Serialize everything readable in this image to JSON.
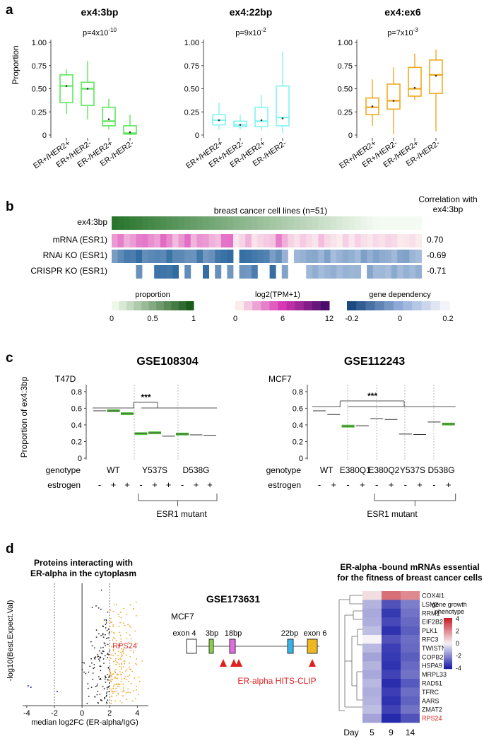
{
  "panel_labels": {
    "a": "a",
    "b": "b",
    "c": "c",
    "d": "d"
  },
  "panel_a": {
    "ylabel": "Proportion",
    "yticks": [
      "1.00",
      "0.75",
      "0.50",
      "0.25",
      "0"
    ],
    "categories": [
      "ER+/HER2+",
      "ER+/HER2-",
      "ER-/HER2+",
      "ER-/HER2-"
    ],
    "colors": [
      "#5ce65c",
      "#7ff5f0",
      "#f0a820"
    ],
    "titles": [
      "ex4:3bp",
      "ex4:22bp",
      "ex4:ex6"
    ],
    "pvals": [
      {
        "base": "p=4x10",
        "exp": "-10"
      },
      {
        "base": "p=9x10",
        "exp": "-2"
      },
      {
        "base": "p=7x10",
        "exp": "-3"
      }
    ]
  },
  "chart_data": [
    {
      "type": "box",
      "title": "ex4:3bp",
      "ylabel": "Proportion",
      "ylim": [
        0,
        1
      ],
      "categories": [
        "ER+/HER2+",
        "ER+/HER2-",
        "ER-/HER2+",
        "ER-/HER2-"
      ],
      "boxes": [
        {
          "min": 0.23,
          "q1": 0.35,
          "median": 0.53,
          "q3": 0.65,
          "max": 0.71,
          "mean": 0.53
        },
        {
          "min": 0.17,
          "q1": 0.32,
          "median": 0.5,
          "q3": 0.57,
          "max": 0.8,
          "mean": 0.5
        },
        {
          "min": 0.06,
          "q1": 0.1,
          "median": 0.15,
          "q3": 0.3,
          "max": 0.39,
          "mean": 0.17
        },
        {
          "min": 0.0,
          "q1": 0.01,
          "median": 0.02,
          "q3": 0.1,
          "max": 0.22,
          "mean": 0.03
        }
      ]
    },
    {
      "type": "box",
      "title": "ex4:22bp",
      "ylabel": "Proportion",
      "ylim": [
        0,
        1
      ],
      "categories": [
        "ER+/HER2+",
        "ER+/HER2-",
        "ER-/HER2+",
        "ER-/HER2-"
      ],
      "boxes": [
        {
          "min": 0.06,
          "q1": 0.11,
          "median": 0.16,
          "q3": 0.22,
          "max": 0.35,
          "mean": 0.16
        },
        {
          "min": 0.06,
          "q1": 0.09,
          "median": 0.11,
          "q3": 0.15,
          "max": 0.22,
          "mean": 0.11
        },
        {
          "min": 0.05,
          "q1": 0.09,
          "median": 0.15,
          "q3": 0.3,
          "max": 0.43,
          "mean": 0.16
        },
        {
          "min": 0.02,
          "q1": 0.1,
          "median": 0.19,
          "q3": 0.53,
          "max": 0.9,
          "mean": 0.18
        }
      ]
    },
    {
      "type": "box",
      "title": "ex4:ex6",
      "ylabel": "Proportion",
      "ylim": [
        0,
        1
      ],
      "categories": [
        "ER+/HER2+",
        "ER+/HER2-",
        "ER-/HER2+",
        "ER-/HER2-"
      ],
      "boxes": [
        {
          "min": 0.1,
          "q1": 0.22,
          "median": 0.3,
          "q3": 0.4,
          "max": 0.6,
          "mean": 0.31
        },
        {
          "min": 0.01,
          "q1": 0.28,
          "median": 0.37,
          "q3": 0.55,
          "max": 0.73,
          "mean": 0.37
        },
        {
          "min": 0.38,
          "q1": 0.42,
          "median": 0.5,
          "q3": 0.73,
          "max": 0.88,
          "mean": 0.51
        },
        {
          "min": 0.04,
          "q1": 0.45,
          "median": 0.65,
          "q3": 0.81,
          "max": 0.92,
          "mean": 0.64
        }
      ]
    },
    {
      "type": "bar",
      "title": "GSE108304",
      "cell_line": "T47D",
      "ylabel": "Proportion of ex4:3bp",
      "ylim": [
        0,
        0.85
      ],
      "yticks": [
        "0.8",
        "0.6",
        "0.4",
        "0.2",
        "0"
      ],
      "values": [
        0.57,
        0.57,
        0.535,
        0.295,
        0.305,
        0.265,
        0.29,
        0.28,
        0.275
      ],
      "highlight": [
        false,
        true,
        true,
        true,
        true,
        false,
        true,
        false,
        false
      ],
      "genotype_labels": [
        "WT",
        "Y537S",
        "D538G"
      ],
      "genotype_groups": [
        [
          0,
          2
        ],
        [
          3,
          5
        ],
        [
          6,
          8
        ]
      ],
      "estrogen": [
        "-",
        "+",
        "+",
        "-",
        "+",
        "+",
        "-",
        "+",
        "+"
      ],
      "significance": "***"
    },
    {
      "type": "bar",
      "title": "GSE112243",
      "cell_line": "MCF7",
      "ylabel": "",
      "ylim": [
        0,
        0.85
      ],
      "yticks": [
        "0.8",
        "0.6",
        "0.4",
        "0.2",
        "0"
      ],
      "values": [
        0.57,
        0.525,
        0.385,
        0.39,
        0.475,
        0.465,
        0.29,
        0.285,
        0.435,
        0.41
      ],
      "highlight": [
        false,
        false,
        true,
        false,
        false,
        false,
        false,
        false,
        false,
        true
      ],
      "genotype_labels": [
        "WT",
        "E380Q1",
        "E380Q2",
        "Y537S",
        "D538G"
      ],
      "genotype_groups": [
        [
          0,
          1
        ],
        [
          2,
          3
        ],
        [
          4,
          5
        ],
        [
          6,
          7
        ],
        [
          8,
          9
        ]
      ],
      "estrogen": [
        "-",
        "+",
        "-",
        "+",
        "-",
        "+",
        "-",
        "+",
        "-",
        "+"
      ],
      "significance": "***"
    },
    {
      "type": "scatter",
      "title": "Proteins interacting with ER-alpha in the cytoplasm",
      "xlabel": "median log2FC (ER-alpha/IgG)",
      "ylabel": "-log10(Best.Expect.Val)",
      "xlim": [
        -4.3,
        4.8
      ],
      "xticks": [
        "-4",
        "-2",
        "0",
        "2",
        "4"
      ],
      "highlight_label": "RPS24",
      "vlines": [
        -2,
        0,
        2
      ]
    },
    {
      "type": "heatmap",
      "title": "ER-alpha -bound mRNAs essential for the fitness of breast cancer cells",
      "genes": [
        "COX4I1",
        "LSM2",
        "RRM1",
        "EIF2B2",
        "PLK1",
        "RFC3",
        "TWISTNB",
        "COPB2",
        "HSPA9",
        "MRPL33",
        "RAD51",
        "TFRC",
        "AARS",
        "ZMAT2",
        "RPS24"
      ],
      "days": [
        "5",
        "9",
        "14"
      ],
      "values": [
        [
          0.4,
          2.5,
          2.0
        ],
        [
          -1.2,
          -3.0,
          -2.2
        ],
        [
          -1.4,
          -3.5,
          -2.4
        ],
        [
          -1.3,
          -3.2,
          -2.6
        ],
        [
          -1.0,
          -3.6,
          -2.8
        ],
        [
          0.0,
          -3.0,
          -2.5
        ],
        [
          -1.1,
          -3.4,
          -2.6
        ],
        [
          -1.5,
          -3.5,
          -2.8
        ],
        [
          -1.2,
          -3.6,
          -2.6
        ],
        [
          -1.4,
          -3.3,
          -2.4
        ],
        [
          -1.1,
          -3.7,
          -2.9
        ],
        [
          -1.3,
          -3.4,
          -2.5
        ],
        [
          -1.2,
          -3.6,
          -2.7
        ],
        [
          -1.0,
          -3.3,
          -2.4
        ],
        [
          -1.5,
          -3.8,
          -3.0
        ]
      ],
      "highlight_gene": "RPS24",
      "legend_title": [
        "gene growth",
        "phenotype"
      ],
      "legend_ticks": [
        "4",
        "2",
        "0",
        "-2",
        "-4"
      ],
      "xlabel_prefix": "Day"
    }
  ],
  "panel_b": {
    "title": "breast cancer cell lines (n=51)",
    "corr_header": [
      "Correlation with",
      "ex4:3bp"
    ],
    "rows": [
      {
        "label": "ex4:3bp",
        "corr": ""
      },
      {
        "label": "mRNA (ESR1)",
        "corr": "0.70"
      },
      {
        "label": "RNAi KO (ESR1)",
        "corr": "-0.69"
      },
      {
        "label": "CRISPR KO (ESR1)",
        "corr": "-0.71"
      }
    ],
    "legends": [
      {
        "title": "proportion",
        "ticks": [
          "0",
          "0.5",
          "1"
        ]
      },
      {
        "title": "log2(TPM+1)",
        "ticks": [
          "0",
          "6",
          "12"
        ]
      },
      {
        "title": "gene dependency",
        "ticks": [
          "-0.2",
          "0",
          "0.2"
        ]
      }
    ]
  },
  "panel_c": {
    "row_labels": {
      "genotype": "genotype",
      "estrogen": "estrogen"
    },
    "bracket_label": "ESR1 mutant"
  },
  "panel_d": {
    "gse": "GSE173631",
    "cell_line": "MCF7",
    "exon_labels": [
      "exon 4",
      "3bp",
      "18bp",
      "22bp",
      "exon 6"
    ],
    "hits_clip": "ER-alpha HITS-CLIP"
  }
}
